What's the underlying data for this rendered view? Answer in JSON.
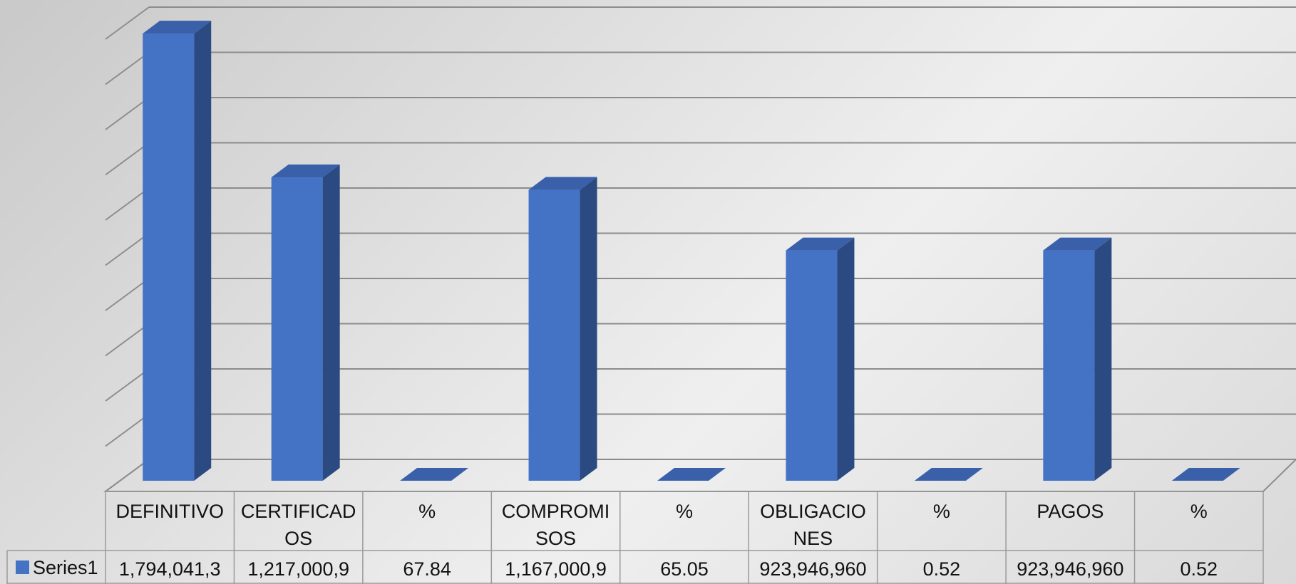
{
  "chart_data": {
    "type": "bar",
    "style": "3d-column-with-data-table",
    "categories": [
      "DEFINITIVO",
      "CERTIFICADOS",
      "%",
      "COMPROMISOS",
      "%",
      "OBLIGACIONES",
      "%",
      "PAGOS",
      "%"
    ],
    "category_label_lines": [
      [
        "DEFINITIVO"
      ],
      [
        "CERTIFICAD",
        "OS"
      ],
      [
        "%"
      ],
      [
        "COMPROMI",
        "SOS"
      ],
      [
        "%"
      ],
      [
        "OBLIGACIO",
        "NES"
      ],
      [
        "%"
      ],
      [
        "PAGOS"
      ],
      [
        "%"
      ]
    ],
    "series": [
      {
        "name": "Series1",
        "values": [
          1794041300,
          1217000900,
          67.84,
          1167000900,
          65.05,
          923946960,
          0.52,
          923946960,
          0.52
        ],
        "table_labels": [
          "1,794,041,3",
          "1,217,000,9",
          "67.84",
          "1,167,000,9",
          "65.05",
          "923,946,960",
          "0.52",
          "923,946,960",
          "0.52"
        ],
        "color": "#4472c4"
      }
    ],
    "ylim": [
      0,
      1800000000
    ],
    "gridlines": 10,
    "grid": true,
    "legend": "in-data-table",
    "colors": {
      "bar_front": "#4472c4",
      "bar_side": "#2c4a82",
      "bar_top": "#3a60aa",
      "grid": "#8c8c8c",
      "table_border": "#9a9a9a"
    }
  }
}
